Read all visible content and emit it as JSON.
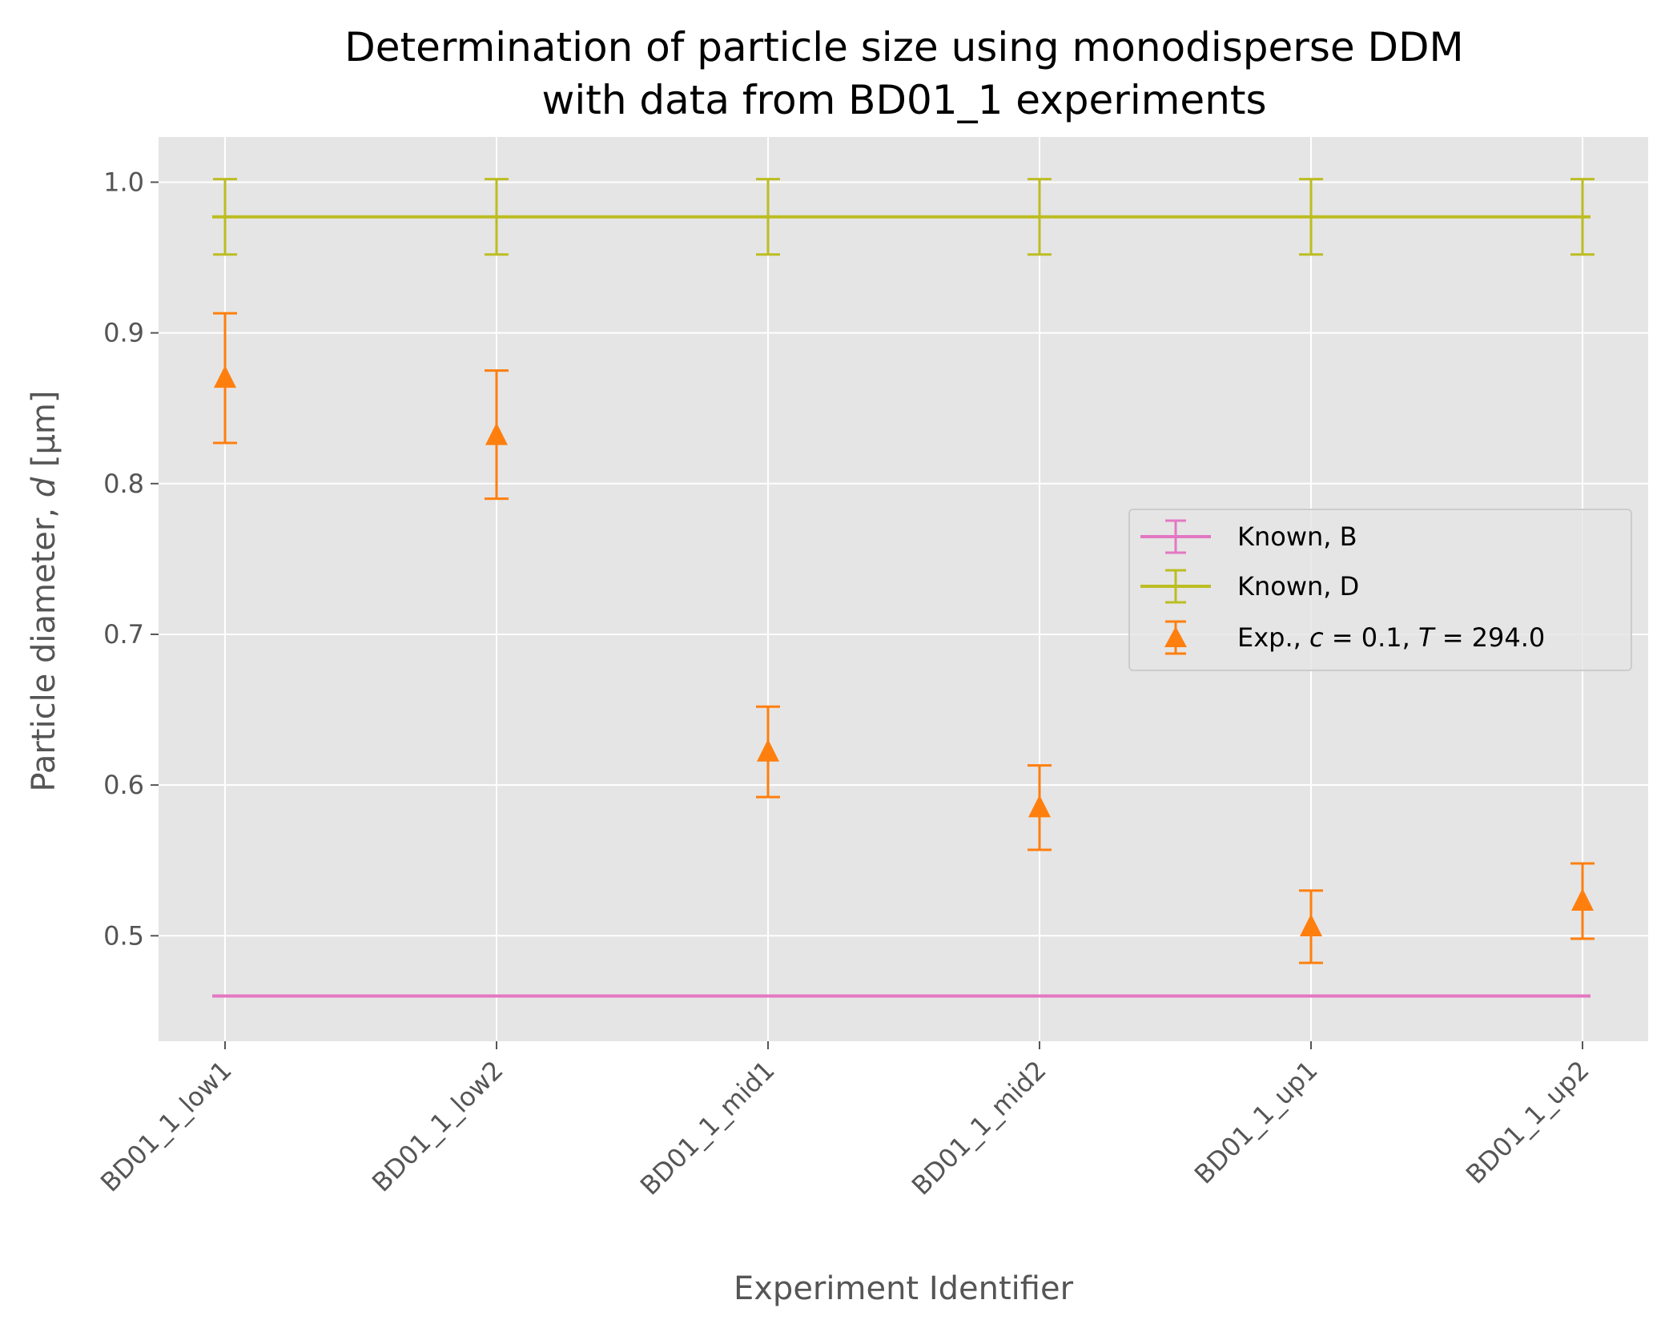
{
  "chart_data": {
    "type": "scatter",
    "title": [
      "Determination of particle size using monodisperse DDM",
      "with data from BD01_1 experiments"
    ],
    "xlabel": "Experiment Identifier",
    "ylabel": "Particle diameter, d [μm]",
    "ylabel_parts": {
      "pre": "Particle diameter, ",
      "var": "d",
      "post": " [μm]"
    },
    "categories": [
      "BD01_1_low1",
      "BD01_1_low2",
      "BD01_1_mid1",
      "BD01_1_mid2",
      "BD01_1_up1",
      "BD01_1_up2"
    ],
    "ylim": [
      0.43,
      1.03
    ],
    "yticks": [
      0.5,
      0.6,
      0.7,
      0.8,
      0.9,
      1.0
    ],
    "ytick_labels": [
      "0.5",
      "0.6",
      "0.7",
      "0.8",
      "0.9",
      "1.0"
    ],
    "grid": true,
    "legend_position": "center-right",
    "series": [
      {
        "name": "Known, B",
        "kind": "line",
        "color": "#e377c2",
        "values": [
          0.46,
          0.46,
          0.46,
          0.46,
          0.46,
          0.46
        ],
        "yerr": [
          0,
          0,
          0,
          0,
          0,
          0
        ]
      },
      {
        "name": "Known, D",
        "kind": "line",
        "color": "#bcbd22",
        "values": [
          0.977,
          0.977,
          0.977,
          0.977,
          0.977,
          0.977
        ],
        "yerr": [
          0.025,
          0.025,
          0.025,
          0.025,
          0.025,
          0.025
        ]
      },
      {
        "name": "Exp., c = 0.1, T = 294.0",
        "kind": "marker",
        "color": "#ff7f0e",
        "values": [
          0.87,
          0.832,
          0.622,
          0.585,
          0.506,
          0.523
        ],
        "yerr_low": [
          0.043,
          0.042,
          0.03,
          0.028,
          0.024,
          0.025
        ],
        "yerr_high": [
          0.043,
          0.043,
          0.03,
          0.028,
          0.024,
          0.025
        ]
      }
    ],
    "legend": [
      {
        "name": "Known, B",
        "text": "Known, B"
      },
      {
        "name": "Known, D",
        "text": "Known, D"
      },
      {
        "name": "Exp.",
        "pre": "Exp., ",
        "c_var": "c",
        "c_val": " = 0.1, ",
        "t_var": "T",
        "t_val": " = 294.0"
      }
    ]
  }
}
